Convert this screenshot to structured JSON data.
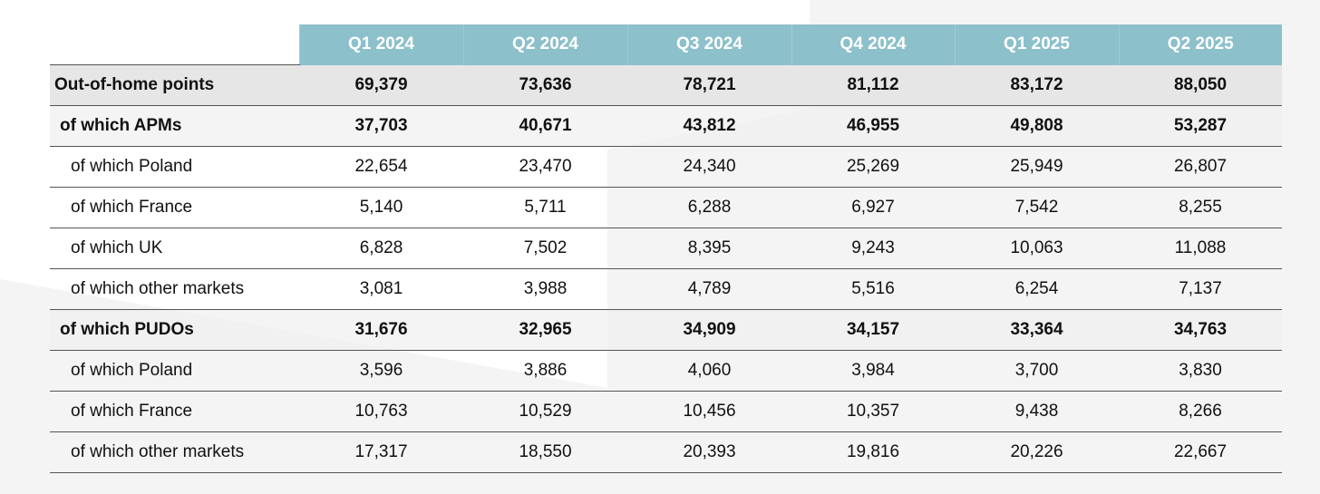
{
  "table": {
    "columns": [
      "Q1 2024",
      "Q2 2024",
      "Q3 2024",
      "Q4 2024",
      "Q1 2025",
      "Q2 2025"
    ],
    "rows": [
      {
        "label": "Out-of-home points",
        "values": [
          "69,379",
          "73,636",
          "78,721",
          "81,112",
          "83,172",
          "88,050"
        ]
      },
      {
        "label": "of which APMs",
        "values": [
          "37,703",
          "40,671",
          "43,812",
          "46,955",
          "49,808",
          "53,287"
        ]
      },
      {
        "label": "of which Poland",
        "values": [
          "22,654",
          "23,470",
          "24,340",
          "25,269",
          "25,949",
          "26,807"
        ]
      },
      {
        "label": "of which France",
        "values": [
          "5,140",
          "5,711",
          "6,288",
          "6,927",
          "7,542",
          "8,255"
        ]
      },
      {
        "label": "of which UK",
        "values": [
          "6,828",
          "7,502",
          "8,395",
          "9,243",
          "10,063",
          "11,088"
        ]
      },
      {
        "label": "of which other markets",
        "values": [
          "3,081",
          "3,988",
          "4,789",
          "5,516",
          "6,254",
          "7,137"
        ]
      },
      {
        "label": "of which PUDOs",
        "values": [
          "31,676",
          "32,965",
          "34,909",
          "34,157",
          "33,364",
          "34,763"
        ]
      },
      {
        "label": "of which Poland",
        "values": [
          "3,596",
          "3,886",
          "4,060",
          "3,984",
          "3,700",
          "3,830"
        ]
      },
      {
        "label": "of which France",
        "values": [
          "10,763",
          "10,529",
          "10,456",
          "10,357",
          "9,438",
          "8,266"
        ]
      },
      {
        "label": "of which other markets",
        "values": [
          "17,317",
          "18,550",
          "20,393",
          "19,816",
          "20,226",
          "22,667"
        ]
      }
    ]
  }
}
